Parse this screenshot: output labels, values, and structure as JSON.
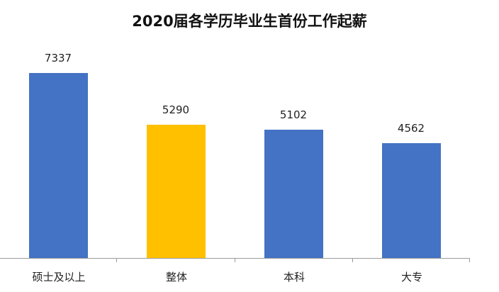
{
  "chart_data": {
    "type": "bar",
    "title": "2020届各学历毕业生首份工作起薪",
    "categories": [
      "硕士及以上",
      "整体",
      "本科",
      "大专"
    ],
    "values": [
      7337,
      5290,
      5102,
      4562
    ],
    "colors": [
      "#4472C4",
      "#FFC000",
      "#4472C4",
      "#4472C4"
    ],
    "data_labels": [
      "7337",
      "5290",
      "5102",
      "4562"
    ],
    "xlabel": "",
    "ylabel": "",
    "grid": false,
    "legend": false,
    "y_axis_visible": false
  }
}
